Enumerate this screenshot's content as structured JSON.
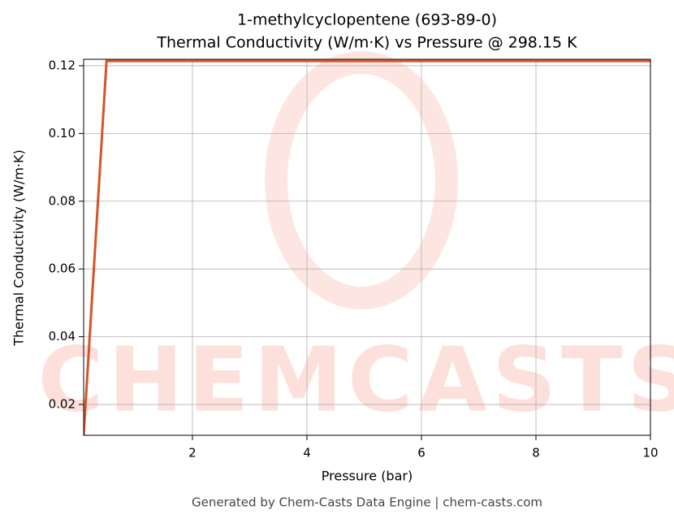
{
  "chart_data": {
    "type": "line",
    "title": "1-methylcyclopentene (693-89-0)",
    "subtitle": "Thermal Conductivity (W/m·K) vs Pressure @ 298.15 K",
    "x_label": "Pressure (bar)",
    "y_label": "Thermal Conductivity (W/m·K)",
    "footer": "Generated by Chem-Casts Data Engine | chem-casts.com",
    "watermark": "CHEMCASTS",
    "x": [
      0.1,
      0.5,
      10
    ],
    "series": [
      {
        "name": "Thermal Conductivity",
        "color": "#d4542a",
        "values": [
          0.0109,
          0.1214,
          0.1214
        ]
      }
    ],
    "xlim": [
      0.1,
      10
    ],
    "xticks": [
      2,
      4,
      6,
      8,
      10
    ],
    "ylim": [
      0.0109,
      0.1219
    ],
    "yticks": [
      {
        "value": 0.02,
        "label": "0.02"
      },
      {
        "value": 0.04,
        "label": "0.04"
      },
      {
        "value": 0.06,
        "label": "0.06"
      },
      {
        "value": 0.08,
        "label": "0.08"
      },
      {
        "value": 0.1,
        "label": "0.10"
      },
      {
        "value": 0.12,
        "label": "0.12"
      }
    ],
    "grid": true
  }
}
